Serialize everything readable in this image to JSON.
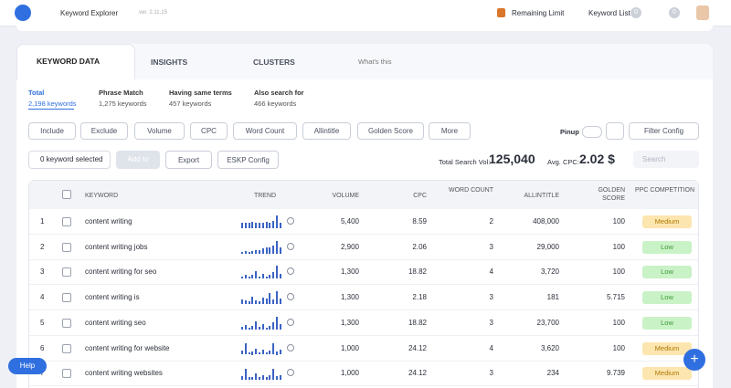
{
  "header": {
    "app": "Keyword Explorer",
    "version": "ver. 2.11.15",
    "remaining": "Remaining Limit",
    "keyword_list": "Keyword List",
    "list_count": "0",
    "notif_count": "0"
  },
  "tabs": [
    "KEYWORD DATA",
    "INSIGHTS",
    "CLUSTERS",
    "What's this"
  ],
  "subtabs": [
    {
      "title": "Total",
      "count": "2,198 keywords"
    },
    {
      "title": "Phrase Match",
      "count": "1,275 keywords"
    },
    {
      "title": "Having same terms",
      "count": "457 keywords"
    },
    {
      "title": "Also search for",
      "count": "466 keywords"
    }
  ],
  "filters": [
    "Include",
    "Exclude",
    "Volume",
    "CPC",
    "Word Count",
    "Allintitle",
    "Golden Score",
    "More"
  ],
  "pinup": "Pinup",
  "filter_config": "Filter Config",
  "actions": {
    "selected": "0 keyword selected",
    "add_to": "Add to",
    "export": "Export",
    "eskp": "ESKP Config",
    "total_label": "Total Search Vol:",
    "total_value": "125,040",
    "cpc_label": "Avg. CPC:",
    "cpc_value": "2.02 $",
    "search": "Search"
  },
  "table": {
    "columns": [
      "KEYWORD",
      "TREND",
      "VOLUME",
      "CPC",
      "WORD COUNT",
      "ALLINTITLE",
      "GOLDEN SCORE",
      "PPC COMPETITION"
    ],
    "rows": [
      {
        "rank": "1",
        "keyword": "content writing",
        "trend": [
          40,
          45,
          40,
          50,
          45,
          40,
          45,
          50,
          45,
          55,
          100,
          45
        ],
        "volume": "5,400",
        "cpc": "8.59",
        "words": "2",
        "allintitle": "408,000",
        "golden": "100",
        "ppc": "Medium"
      },
      {
        "rank": "2",
        "keyword": "content writing jobs",
        "trend": [
          15,
          20,
          15,
          20,
          25,
          30,
          40,
          45,
          50,
          60,
          100,
          50
        ],
        "volume": "2,900",
        "cpc": "2.06",
        "words": "3",
        "allintitle": "29,000",
        "golden": "100",
        "ppc": "Low"
      },
      {
        "rank": "3",
        "keyword": "content writing for seo",
        "trend": [
          20,
          35,
          15,
          30,
          60,
          20,
          40,
          15,
          30,
          55,
          100,
          40
        ],
        "volume": "1,300",
        "cpc": "18.82",
        "words": "4",
        "allintitle": "3,720",
        "golden": "100",
        "ppc": "Low"
      },
      {
        "rank": "4",
        "keyword": "content writing is",
        "trend": [
          40,
          30,
          25,
          55,
          30,
          25,
          50,
          45,
          90,
          40,
          100,
          45
        ],
        "volume": "1,300",
        "cpc": "2.18",
        "words": "3",
        "allintitle": "181",
        "golden": "5.715",
        "ppc": "Low"
      },
      {
        "rank": "5",
        "keyword": "content writing seo",
        "trend": [
          20,
          35,
          15,
          30,
          60,
          20,
          40,
          15,
          30,
          55,
          100,
          40
        ],
        "volume": "1,300",
        "cpc": "18.82",
        "words": "3",
        "allintitle": "23,700",
        "golden": "100",
        "ppc": "Low"
      },
      {
        "rank": "6",
        "keyword": "content writing for website",
        "trend": [
          30,
          90,
          20,
          25,
          45,
          20,
          40,
          20,
          35,
          90,
          25,
          40
        ],
        "volume": "1,000",
        "cpc": "24.12",
        "words": "4",
        "allintitle": "3,620",
        "golden": "100",
        "ppc": "Medium"
      },
      {
        "rank": "7",
        "keyword": "content writing websites",
        "trend": [
          30,
          85,
          20,
          25,
          50,
          20,
          40,
          20,
          35,
          90,
          30,
          35
        ],
        "volume": "1,000",
        "cpc": "24.12",
        "words": "3",
        "allintitle": "234",
        "golden": "9.739",
        "ppc": "Medium"
      }
    ]
  },
  "help": "Help"
}
